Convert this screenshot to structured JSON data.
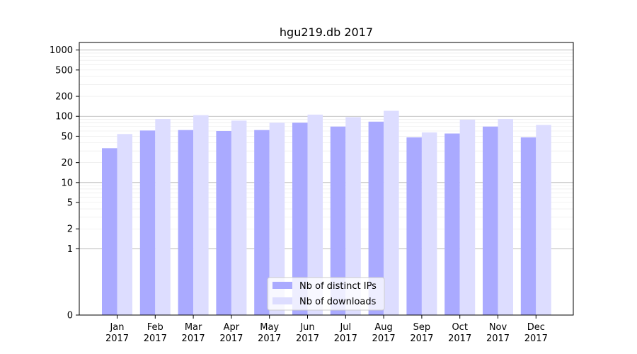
{
  "chart_data": {
    "type": "bar",
    "title": "hgu219.db 2017",
    "xlabel": "",
    "ylabel": "",
    "y_scale": "symlog",
    "ylim": [
      0,
      1300
    ],
    "grid": "horizontal",
    "legend_position": "bottom-center",
    "categories": [
      [
        "Jan",
        "2017"
      ],
      [
        "Feb",
        "2017"
      ],
      [
        "Mar",
        "2017"
      ],
      [
        "Apr",
        "2017"
      ],
      [
        "May",
        "2017"
      ],
      [
        "Jun",
        "2017"
      ],
      [
        "Jul",
        "2017"
      ],
      [
        "Aug",
        "2017"
      ],
      [
        "Sep",
        "2017"
      ],
      [
        "Oct",
        "2017"
      ],
      [
        "Nov",
        "2017"
      ],
      [
        "Dec",
        "2017"
      ]
    ],
    "y_ticks": [
      {
        "value": 0,
        "label": "0"
      },
      {
        "value": 1,
        "label": "1"
      },
      {
        "value": 2,
        "label": "2"
      },
      {
        "value": 5,
        "label": "5"
      },
      {
        "value": 10,
        "label": "10"
      },
      {
        "value": 20,
        "label": "20"
      },
      {
        "value": 50,
        "label": "50"
      },
      {
        "value": 100,
        "label": "100"
      },
      {
        "value": 200,
        "label": "200"
      },
      {
        "value": 500,
        "label": "500"
      },
      {
        "value": 1000,
        "label": "1000"
      }
    ],
    "series": [
      {
        "name": "Nb of distinct IPs",
        "color": "#aaaaff",
        "values": [
          33,
          61,
          62,
          60,
          62,
          80,
          70,
          83,
          48,
          55,
          70,
          48
        ]
      },
      {
        "name": "Nb of downloads",
        "color": "#ddddff",
        "values": [
          54,
          91,
          104,
          86,
          80,
          106,
          97,
          121,
          57,
          89,
          91,
          74
        ]
      }
    ]
  }
}
